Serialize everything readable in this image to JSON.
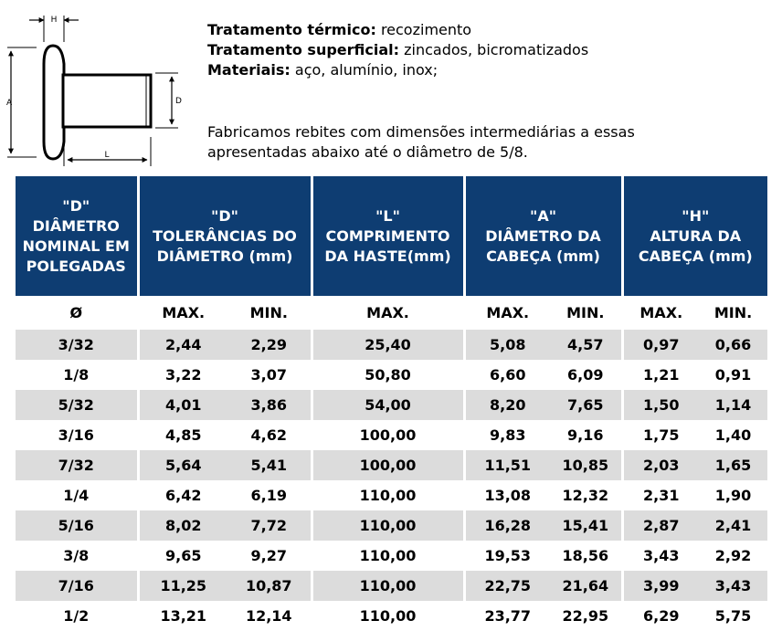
{
  "drawing": {
    "labels": {
      "H": "H",
      "A": "A",
      "D": "D",
      "L": "L"
    }
  },
  "specs": [
    {
      "label": "Tratamento térmico:",
      "value": "recozimento"
    },
    {
      "label": "Tratamento superficial:",
      "value": "zincados, bicromatizados"
    },
    {
      "label": "Materiais:",
      "value": "aço, alumínio, inox;"
    }
  ],
  "note": {
    "line1": "Fabricamos rebites com dimensões intermediárias a essas",
    "line2": "apresentadas abaixo até o diâmetro de 5/8."
  },
  "table": {
    "headers": [
      {
        "l1": "\"D\"",
        "l2": "DIÂMETRO",
        "l3": "NOMINAL EM",
        "l4": "POLEGADAS"
      },
      {
        "l1": "\"D\"",
        "l2": "TOLERÂNCIAS DO",
        "l3": "DIÂMETRO (mm)"
      },
      {
        "l1": "\"L\"",
        "l2": "COMPRIMENTO",
        "l3": "DA HASTE(mm)"
      },
      {
        "l1": "\"A\"",
        "l2": "DIÂMETRO DA",
        "l3": "CABEÇA (mm)"
      },
      {
        "l1": "\"H\"",
        "l2": "ALTURA DA",
        "l3": "CABEÇA (mm)"
      }
    ],
    "subheaders": [
      "Ø",
      "MAX.",
      "MIN.",
      "MAX.",
      "MAX.",
      "MIN.",
      "MAX.",
      "MIN."
    ],
    "rows": [
      [
        "3/32",
        "2,44",
        "2,29",
        "25,40",
        "5,08",
        "4,57",
        "0,97",
        "0,66"
      ],
      [
        "1/8",
        "3,22",
        "3,07",
        "50,80",
        "6,60",
        "6,09",
        "1,21",
        "0,91"
      ],
      [
        "5/32",
        "4,01",
        "3,86",
        "54,00",
        "8,20",
        "7,65",
        "1,50",
        "1,14"
      ],
      [
        "3/16",
        "4,85",
        "4,62",
        "100,00",
        "9,83",
        "9,16",
        "1,75",
        "1,40"
      ],
      [
        "7/32",
        "5,64",
        "5,41",
        "100,00",
        "11,51",
        "10,85",
        "2,03",
        "1,65"
      ],
      [
        "1/4",
        "6,42",
        "6,19",
        "110,00",
        "13,08",
        "12,32",
        "2,31",
        "1,90"
      ],
      [
        "5/16",
        "8,02",
        "7,72",
        "110,00",
        "16,28",
        "15,41",
        "2,87",
        "2,41"
      ],
      [
        "3/8",
        "9,65",
        "9,27",
        "110,00",
        "19,53",
        "18,56",
        "3,43",
        "2,92"
      ],
      [
        "7/16",
        "11,25",
        "10,87",
        "110,00",
        "22,75",
        "21,64",
        "3,99",
        "3,43"
      ],
      [
        "1/2",
        "13,21",
        "12,14",
        "110,00",
        "23,77",
        "22,95",
        "6,29",
        "5,75"
      ]
    ]
  }
}
